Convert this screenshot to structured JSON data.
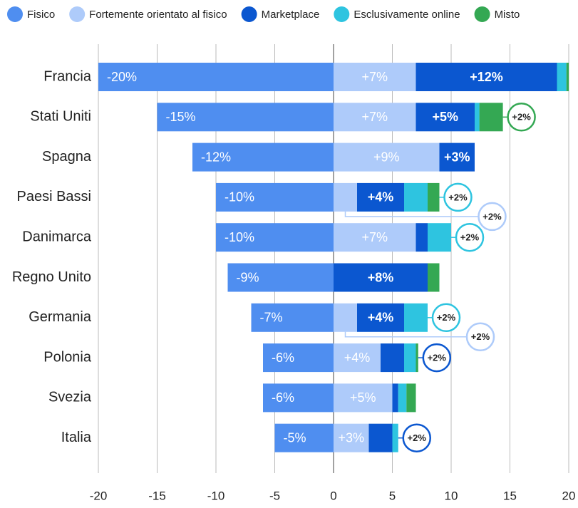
{
  "chart_data": {
    "type": "diverging-stacked-bar",
    "categories": [
      "Francia",
      "Stati Uniti",
      "Spagna",
      "Paesi Bassi",
      "Danimarca",
      "Regno Unito",
      "Germania",
      "Polonia",
      "Svezia",
      "Italia"
    ],
    "series": [
      {
        "name": "Fisico",
        "color": "#4f8ef0",
        "values": [
          -20,
          -15,
          -12,
          -10,
          -10,
          -9,
          -7,
          -6,
          -6,
          -5
        ],
        "value_labels": [
          "-20%",
          "-15%",
          "-12%",
          "-10%",
          "-10%",
          "-9%",
          "-7%",
          "-6%",
          "-6%",
          "-5%"
        ]
      },
      {
        "name": "Fortemente orientato al fisico",
        "color": "#aecbfa",
        "values": [
          7,
          7,
          9,
          2,
          7,
          null,
          2,
          4,
          5,
          3
        ],
        "value_labels": [
          "+7%",
          "+7%",
          "+9%",
          "+2%",
          "+7%",
          null,
          "+2%",
          "+4%",
          "+5%",
          "+3%"
        ]
      },
      {
        "name": "Marketplace",
        "color": "#0b57d0",
        "values": [
          12,
          5,
          3,
          4,
          1,
          8,
          4,
          2,
          0.5,
          2
        ],
        "value_labels": [
          "+12%",
          "+5%",
          "+3%",
          "+4%",
          null,
          "+8%",
          "+4%",
          "+2%",
          null,
          "+2%"
        ]
      },
      {
        "name": "Esclusivamente online",
        "color": "#2ec4e0",
        "values": [
          0.8,
          0.4,
          null,
          2,
          2,
          null,
          2,
          1,
          0.7,
          0.5
        ],
        "value_labels": [
          null,
          null,
          null,
          "+2%",
          "+2%",
          null,
          "+2%",
          null,
          null,
          null
        ]
      },
      {
        "name": "Misto",
        "color": "#34a853",
        "values": [
          0.2,
          2,
          null,
          1,
          null,
          1,
          null,
          0.2,
          0.8,
          null
        ],
        "value_labels": [
          null,
          "+2%",
          null,
          null,
          null,
          null,
          null,
          null,
          null,
          null
        ]
      }
    ],
    "xlim": [
      -20,
      20
    ],
    "xticks": [
      -20,
      -15,
      -10,
      -5,
      0,
      5,
      10,
      15,
      20
    ],
    "grid": true,
    "legend": "top"
  }
}
